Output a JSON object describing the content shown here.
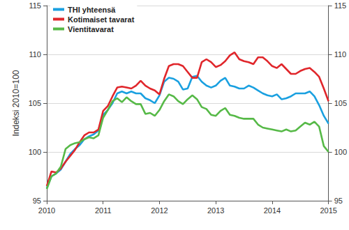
{
  "chart_data": {
    "type": "line",
    "y_label": "Indeksi 2010=100",
    "categories": [
      "2010",
      null,
      null,
      null,
      null,
      null,
      null,
      null,
      null,
      null,
      null,
      null,
      "2011",
      null,
      null,
      null,
      null,
      null,
      null,
      null,
      null,
      null,
      null,
      null,
      "2012",
      null,
      null,
      null,
      null,
      null,
      null,
      null,
      null,
      null,
      null,
      null,
      "2013",
      null,
      null,
      null,
      null,
      null,
      null,
      null,
      null,
      null,
      null,
      null,
      "2014",
      null,
      null,
      null,
      null,
      null,
      null,
      null,
      null,
      null,
      null,
      null,
      "2015"
    ],
    "series": [
      {
        "name": "THI yhteensä",
        "color": "#1aa0e0",
        "values": [
          96.3,
          97.5,
          97.8,
          98.2,
          99.0,
          99.8,
          100.3,
          100.7,
          101.3,
          101.6,
          101.8,
          102.2,
          103.8,
          104.3,
          105.0,
          106.0,
          106.2,
          106.0,
          106.2,
          106.0,
          106.0,
          105.5,
          105.3,
          105.0,
          105.8,
          107.2,
          107.6,
          107.5,
          107.2,
          106.4,
          106.5,
          107.7,
          107.8,
          107.2,
          106.8,
          106.6,
          106.8,
          107.3,
          107.6,
          106.8,
          106.7,
          106.5,
          106.5,
          106.8,
          106.6,
          106.3,
          106.0,
          105.8,
          105.7,
          105.9,
          105.4,
          105.5,
          105.7,
          106.0,
          106.0,
          106.0,
          106.2,
          105.7,
          104.8,
          103.7,
          102.9
        ]
      },
      {
        "name": "Kotimaiset tavarat",
        "color": "#e0262b",
        "values": [
          96.5,
          98.0,
          97.9,
          98.3,
          99.0,
          99.6,
          100.2,
          101.0,
          101.7,
          102.0,
          102.0,
          102.3,
          104.2,
          104.7,
          105.7,
          106.6,
          106.7,
          106.6,
          106.5,
          106.8,
          107.3,
          106.8,
          106.5,
          106.3,
          105.9,
          107.5,
          108.8,
          109.0,
          109.0,
          108.8,
          108.2,
          107.6,
          107.6,
          109.2,
          109.5,
          109.2,
          108.7,
          108.9,
          109.3,
          109.9,
          110.2,
          109.5,
          109.3,
          109.2,
          109.0,
          109.7,
          109.7,
          109.3,
          108.8,
          108.6,
          109.0,
          108.5,
          108.0,
          108.0,
          108.3,
          108.5,
          108.6,
          108.2,
          107.7,
          106.5,
          105.2
        ]
      },
      {
        "name": "Vientitavarat",
        "color": "#56b947",
        "values": [
          96.2,
          97.5,
          97.8,
          98.5,
          100.3,
          100.7,
          100.9,
          101.0,
          101.3,
          101.5,
          101.4,
          101.7,
          103.5,
          104.3,
          105.2,
          105.5,
          105.1,
          105.6,
          105.2,
          104.9,
          104.9,
          103.9,
          104.0,
          103.7,
          104.3,
          105.2,
          105.9,
          105.7,
          105.2,
          104.9,
          105.4,
          105.8,
          105.4,
          104.6,
          104.4,
          103.8,
          103.7,
          104.2,
          104.5,
          103.8,
          103.7,
          103.5,
          103.4,
          103.4,
          103.4,
          102.8,
          102.5,
          102.4,
          102.3,
          102.2,
          102.1,
          102.3,
          102.1,
          102.2,
          102.6,
          103.0,
          102.8,
          103.1,
          102.6,
          100.6,
          100.0
        ]
      }
    ],
    "ylim": [
      95,
      115
    ],
    "yticks": [
      95,
      100,
      105,
      110,
      115
    ],
    "y2lim": [
      95,
      115
    ],
    "y2ticks": [
      95,
      100,
      105,
      110,
      115
    ],
    "grid": true,
    "legend": "top-left"
  }
}
